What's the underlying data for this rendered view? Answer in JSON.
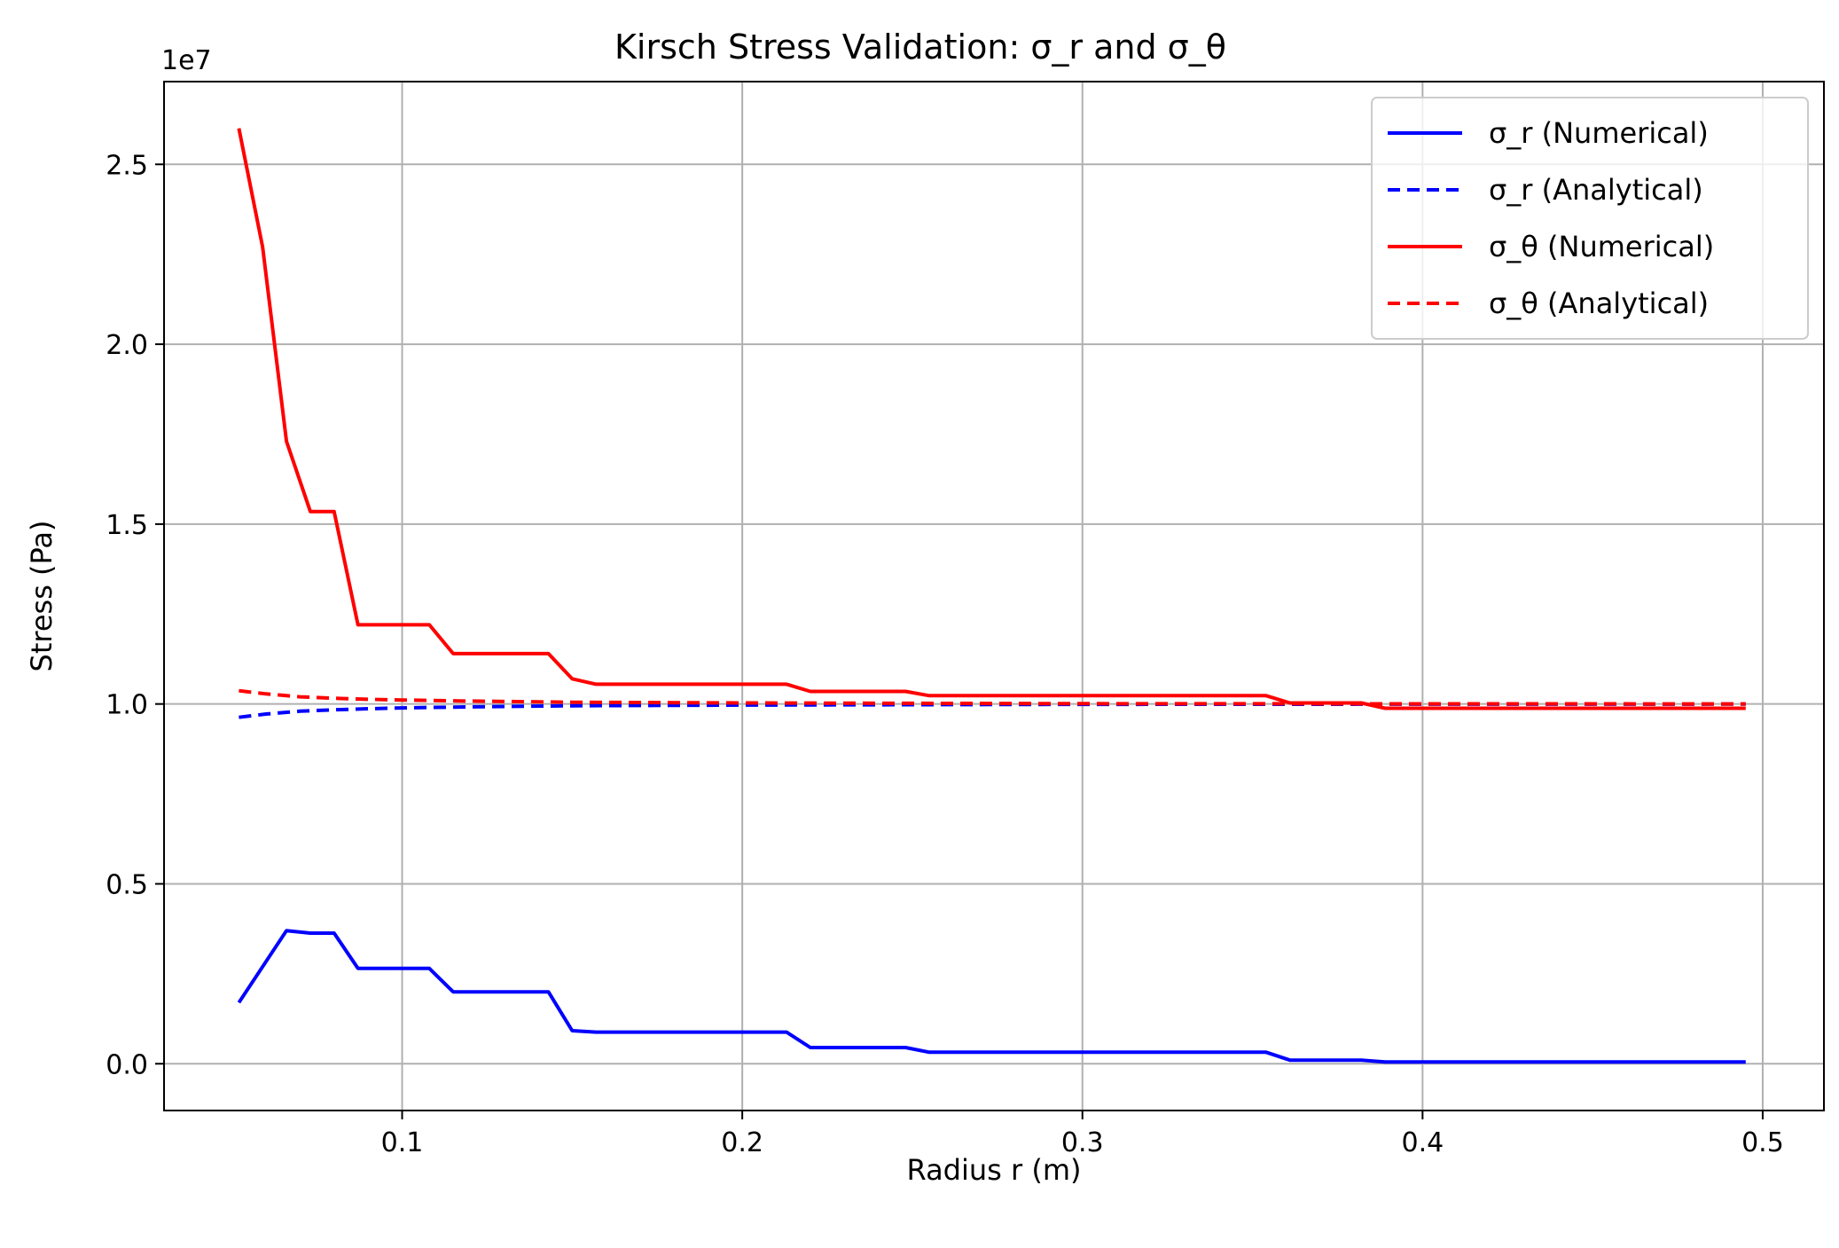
{
  "chart_data": {
    "type": "line",
    "title": "Kirsch Stress Validation: σ_r and σ_θ",
    "xlabel": "Radius r (m)",
    "ylabel": "Stress (Pa)",
    "offset_text": "1e7",
    "xlim": [
      0.03,
      0.518
    ],
    "ylim": [
      -1300000,
      27300000
    ],
    "x_ticks": [
      0.1,
      0.2,
      0.3,
      0.4,
      0.5
    ],
    "x_tick_labels": [
      "0.1",
      "0.2",
      "0.3",
      "0.4",
      "0.5"
    ],
    "y_ticks": [
      0,
      5000000,
      10000000,
      15000000,
      20000000,
      25000000
    ],
    "y_tick_labels": [
      "0.0",
      "0.5",
      "1.0",
      "1.5",
      "2.0",
      "2.5"
    ],
    "grid": true,
    "legend_position": "top-right",
    "series": [
      {
        "name": "σ_r (Numerical)",
        "color": "#0000ff",
        "style": "solid",
        "points": [
          [
            0.052,
            1700000
          ],
          [
            0.059,
            2700000
          ],
          [
            0.066,
            3700000
          ],
          [
            0.073,
            3630000
          ],
          [
            0.08,
            3630000
          ],
          [
            0.087,
            2650000
          ],
          [
            0.108,
            2650000
          ],
          [
            0.115,
            2000000
          ],
          [
            0.143,
            2000000
          ],
          [
            0.15,
            920000
          ],
          [
            0.157,
            880000
          ],
          [
            0.213,
            880000
          ],
          [
            0.22,
            450000
          ],
          [
            0.248,
            450000
          ],
          [
            0.255,
            320000
          ],
          [
            0.354,
            320000
          ],
          [
            0.361,
            100000
          ],
          [
            0.382,
            100000
          ],
          [
            0.389,
            50000
          ],
          [
            0.495,
            50000
          ]
        ]
      },
      {
        "name": "σ_r (Analytical)",
        "color": "#0000ff",
        "style": "dashed",
        "points": [
          [
            0.052,
            9630000
          ],
          [
            0.06,
            9720000
          ],
          [
            0.07,
            9800000
          ],
          [
            0.08,
            9840000
          ],
          [
            0.09,
            9870000
          ],
          [
            0.1,
            9890000
          ],
          [
            0.12,
            9920000
          ],
          [
            0.15,
            9950000
          ],
          [
            0.2,
            9970000
          ],
          [
            0.25,
            9980000
          ],
          [
            0.3,
            9990000
          ],
          [
            0.4,
            9995000
          ],
          [
            0.495,
            9997000
          ]
        ]
      },
      {
        "name": "σ_θ (Numerical)",
        "color": "#ff0000",
        "style": "solid",
        "points": [
          [
            0.052,
            26000000
          ],
          [
            0.059,
            22700000
          ],
          [
            0.066,
            17300000
          ],
          [
            0.073,
            15350000
          ],
          [
            0.08,
            15350000
          ],
          [
            0.087,
            12200000
          ],
          [
            0.108,
            12200000
          ],
          [
            0.115,
            11400000
          ],
          [
            0.143,
            11400000
          ],
          [
            0.15,
            10700000
          ],
          [
            0.157,
            10550000
          ],
          [
            0.213,
            10550000
          ],
          [
            0.22,
            10350000
          ],
          [
            0.248,
            10350000
          ],
          [
            0.255,
            10230000
          ],
          [
            0.354,
            10230000
          ],
          [
            0.361,
            10030000
          ],
          [
            0.382,
            10030000
          ],
          [
            0.389,
            9880000
          ],
          [
            0.495,
            9880000
          ]
        ]
      },
      {
        "name": "σ_θ (Analytical)",
        "color": "#ff0000",
        "style": "dashed",
        "points": [
          [
            0.052,
            10370000
          ],
          [
            0.06,
            10280000
          ],
          [
            0.07,
            10200000
          ],
          [
            0.08,
            10160000
          ],
          [
            0.09,
            10130000
          ],
          [
            0.1,
            10110000
          ],
          [
            0.12,
            10080000
          ],
          [
            0.15,
            10050000
          ],
          [
            0.2,
            10030000
          ],
          [
            0.25,
            10020000
          ],
          [
            0.3,
            10010000
          ],
          [
            0.4,
            10005000
          ],
          [
            0.495,
            10003000
          ]
        ]
      }
    ]
  }
}
